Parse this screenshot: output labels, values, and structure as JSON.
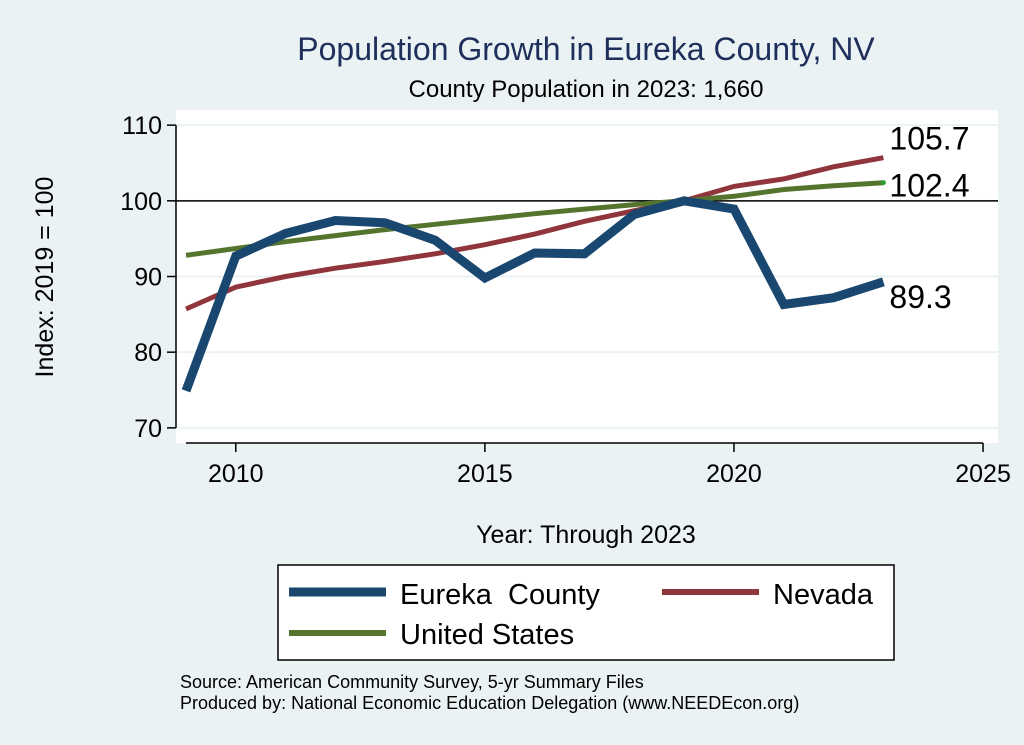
{
  "colors": {
    "background": "#eaf2f3",
    "plot_bg": "#ffffff",
    "title": "#1e2f5c",
    "eureka": "#1a476f",
    "nevada": "#90353b",
    "us": "#55752f",
    "grid": "#eaf2f3",
    "reference": "#000000"
  },
  "chart_data": {
    "type": "line",
    "title": "Population Growth in Eureka County, NV",
    "subtitle": "County Population in 2023: 1,660",
    "xlabel": "Year: Through 2023",
    "ylabel": "Index: 2019 = 100",
    "xlim": [
      2008.8,
      2025.3
    ],
    "ylim": [
      68,
      112
    ],
    "xticks": [
      2010,
      2015,
      2020,
      2025
    ],
    "yticks": [
      70,
      80,
      90,
      100,
      110
    ],
    "reference_line": 100,
    "grid": true,
    "series": [
      {
        "name": "Eureka  County",
        "key": "eureka",
        "x": [
          2009,
          2010,
          2011,
          2012,
          2013,
          2014,
          2015,
          2016,
          2017,
          2018,
          2019,
          2020,
          2021,
          2022,
          2023
        ],
        "values": [
          74.9,
          92.7,
          95.7,
          97.4,
          97.1,
          94.8,
          89.8,
          93.1,
          93.0,
          98.2,
          100.0,
          98.9,
          86.3,
          87.2,
          89.3
        ],
        "end_label": "89.3"
      },
      {
        "name": "Nevada",
        "key": "nevada",
        "x": [
          2009,
          2010,
          2011,
          2012,
          2013,
          2014,
          2015,
          2016,
          2017,
          2018,
          2019,
          2020,
          2021,
          2022,
          2023
        ],
        "values": [
          85.7,
          88.6,
          90.0,
          91.1,
          92.0,
          93.0,
          94.2,
          95.6,
          97.3,
          98.7,
          100.0,
          101.9,
          102.9,
          104.5,
          105.7
        ],
        "end_label": "105.7"
      },
      {
        "name": "United States",
        "key": "us",
        "x": [
          2009,
          2010,
          2011,
          2012,
          2013,
          2014,
          2015,
          2016,
          2017,
          2018,
          2019,
          2020,
          2021,
          2022,
          2023
        ],
        "values": [
          92.8,
          93.7,
          94.6,
          95.4,
          96.2,
          96.9,
          97.6,
          98.3,
          98.9,
          99.5,
          100.0,
          100.6,
          101.5,
          102.0,
          102.4
        ],
        "end_label": "102.4"
      }
    ],
    "legend": {
      "position": "bottom",
      "entries": [
        {
          "label": "Eureka  County",
          "key": "eureka"
        },
        {
          "label": "Nevada",
          "key": "nevada"
        },
        {
          "label": "United States",
          "key": "us"
        }
      ]
    },
    "footnotes": [
      "Source: American Community Survey, 5-yr Summary Files",
      "Produced by: National Economic Education Delegation (www.NEEDEcon.org)"
    ]
  }
}
